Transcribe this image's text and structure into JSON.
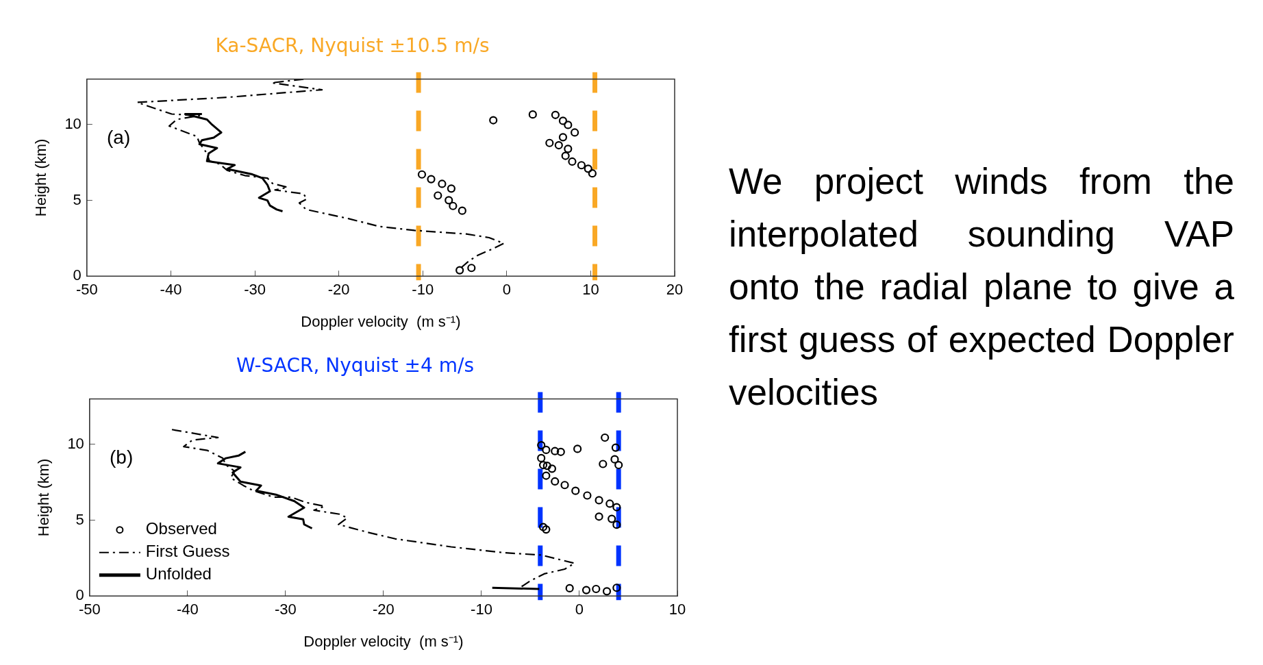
{
  "chart_data": [
    {
      "type": "line",
      "title": "Ka-SACR, Nyquist ±10.5 m/s",
      "xlabel": "Doppler velocity  (m s⁻¹)",
      "ylabel": "Height (km)",
      "xlim": [
        -50,
        20
      ],
      "xticks": [
        -50,
        -40,
        -30,
        -20,
        -10,
        0,
        10,
        20
      ],
      "ylim": [
        0,
        13
      ],
      "yticks": [
        0,
        5,
        10
      ],
      "grid": false,
      "legend": false,
      "annotations": [
        "(a)"
      ],
      "ref_lines": [
        {
          "axis": "x",
          "value": -10.5,
          "color": "#f9a825",
          "line_style": "dashed"
        },
        {
          "axis": "x",
          "value": 10.5,
          "color": "#f9a825",
          "line_style": "dashed"
        }
      ],
      "series": [
        {
          "type": "scatter",
          "marker": "circle",
          "color": "#000000",
          "x": [
            -1.6,
            3.1,
            5.8,
            6.7,
            7.3,
            8.1,
            6.7,
            5.1,
            6.2,
            7.3,
            7.0,
            7.8,
            8.9,
            9.7,
            10.2,
            -10.1,
            -9.0,
            -7.7,
            -6.6,
            -8.2,
            -6.9,
            -6.4,
            -5.3,
            -5.6,
            -4.2
          ],
          "values": [
            10.29,
            10.67,
            10.64,
            10.25,
            9.98,
            9.48,
            9.17,
            8.79,
            8.64,
            8.4,
            7.94,
            7.56,
            7.32,
            7.09,
            6.78,
            6.71,
            6.4,
            6.09,
            5.78,
            5.32,
            5.01,
            4.63,
            4.32,
            0.39,
            0.54
          ]
        },
        {
          "type": "line",
          "marker": "none",
          "line_style": "dashdot",
          "color": "#000000",
          "x": [
            -24.2,
            -28,
            -22,
            -27.3,
            -33.3,
            -44,
            -41.7,
            -39.9,
            -36.6,
            -39.3,
            -40.2,
            -36.9,
            -36.6,
            -35.7,
            -35.4,
            -34.2,
            -33.3,
            -31.2,
            -28.5,
            -27.9,
            -26.1,
            -27.6,
            -24.2,
            -23.8,
            -24.7,
            -23.9,
            -18.8,
            -15.2,
            -11.0,
            -4.8,
            -2.1,
            -0.35,
            -1.8,
            -3.4,
            -4.5,
            -5.3,
            -5.7
          ],
          "values": [
            13.0,
            12.76,
            12.3,
            12.07,
            11.8,
            11.47,
            11.03,
            10.7,
            10.6,
            10.34,
            9.91,
            9.22,
            8.8,
            8.1,
            7.6,
            7.41,
            6.98,
            6.64,
            6.47,
            6.12,
            5.86,
            5.69,
            5.43,
            5.09,
            4.83,
            4.4,
            3.79,
            3.28,
            3.02,
            2.78,
            2.54,
            2.16,
            1.77,
            1.39,
            1.0,
            0.62,
            0.39
          ]
        },
        {
          "type": "line",
          "marker": "none",
          "line_style": "solid",
          "color": "#000000",
          "x": [
            -36.3,
            -38.3,
            -35.7,
            -35.1,
            -34.0,
            -34.9,
            -36.3,
            -36.6,
            -34.5,
            -35.5,
            -35.7,
            -32.4,
            -33.3,
            -30.3,
            -29.1,
            -28.5,
            -28.2,
            -29.5,
            -28.5,
            -28.2,
            -27.4,
            -26.7
          ],
          "values": [
            10.7,
            10.7,
            10.34,
            10.0,
            9.48,
            9.14,
            8.97,
            8.71,
            8.45,
            8.1,
            7.59,
            7.33,
            7.07,
            6.72,
            6.47,
            6.03,
            5.6,
            5.17,
            5.0,
            4.66,
            4.4,
            4.28
          ]
        }
      ]
    },
    {
      "type": "line",
      "title": "W-SACR, Nyquist ±4 m/s",
      "xlabel": "Doppler velocity  (m s⁻¹)",
      "ylabel": "Height (km)",
      "xlim": [
        -50,
        10
      ],
      "xticks": [
        -50,
        -40,
        -30,
        -20,
        -10,
        0,
        10
      ],
      "ylim": [
        0,
        13
      ],
      "yticks": [
        0,
        5,
        10
      ],
      "grid": false,
      "legend": "bottom left",
      "annotations": [
        "(b)"
      ],
      "ref_lines": [
        {
          "axis": "x",
          "value": -4,
          "color": "#0033ff",
          "line_style": "dashed"
        },
        {
          "axis": "x",
          "value": 4,
          "color": "#0033ff",
          "line_style": "dashed"
        }
      ],
      "series": [
        {
          "name": "Observed",
          "type": "scatter",
          "marker": "circle",
          "color": "#000000",
          "x": [
            2.6,
            -0.2,
            3.7,
            -3.9,
            -3.4,
            -2.5,
            -1.9,
            -3.9,
            -3.7,
            -3.3,
            -2.8,
            -3.4,
            -2.5,
            -1.5,
            -0.4,
            0.8,
            2.0,
            3.1,
            3.8,
            2.0,
            3.3,
            3.8,
            -3.7,
            -3.4,
            2.4,
            3.6,
            4.0,
            -1.0,
            0.7,
            1.7,
            2.8,
            3.8
          ],
          "values": [
            10.45,
            9.71,
            9.79,
            9.95,
            9.64,
            9.56,
            9.51,
            9.1,
            8.64,
            8.59,
            8.4,
            7.94,
            7.56,
            7.32,
            6.94,
            6.63,
            6.32,
            6.09,
            5.86,
            5.24,
            5.09,
            4.7,
            4.55,
            4.39,
            8.71,
            9.02,
            8.64,
            0.51,
            0.39,
            0.46,
            0.31,
            0.54
          ]
        },
        {
          "name": "First Guess",
          "type": "line",
          "marker": "none",
          "line_style": "dashdot",
          "color": "#000000",
          "x": [
            -41.6,
            -36.9,
            -39.5,
            -40.4,
            -38.0,
            -36.4,
            -36.1,
            -35.2,
            -35.6,
            -34.3,
            -33.3,
            -31.2,
            -29.4,
            -27.9,
            -26.0,
            -27.1,
            -24.5,
            -23.7,
            -24.6,
            -21.6,
            -18.8,
            -16.1,
            -13.1,
            -7.6,
            -3.9,
            -0.5,
            -1.5,
            -3.6,
            -5.0,
            -5.9
          ],
          "values": [
            10.98,
            10.46,
            10.29,
            9.86,
            9.61,
            9.09,
            8.66,
            8.23,
            7.8,
            7.29,
            6.95,
            6.52,
            6.52,
            6.17,
            5.92,
            5.66,
            5.4,
            5.15,
            4.72,
            4.2,
            3.77,
            3.52,
            3.24,
            2.85,
            2.7,
            2.16,
            1.77,
            1.46,
            1.0,
            0.62
          ]
        },
        {
          "name": "Unfolded",
          "type": "line",
          "marker": "none",
          "line_style": "solid",
          "color": "#000000",
          "x": [
            -34.1,
            -34.8,
            -36.1,
            -36.9,
            -34.6,
            -35.4,
            -34.6,
            -32.5,
            -33.0,
            -31.0,
            -29.1,
            -28.1,
            -29.7,
            -28.2,
            -28.1,
            -27.3,
            null,
            -8.9,
            -4.1
          ],
          "values": [
            9.52,
            9.26,
            9.09,
            8.75,
            8.49,
            8.15,
            7.55,
            7.29,
            6.95,
            6.69,
            6.26,
            5.83,
            5.23,
            5.06,
            4.72,
            4.46,
            null,
            0.54,
            0.46
          ]
        }
      ]
    },
    {
      "type": "other",
      "annotations": [
        "We project winds from the interpolated sounding VAP onto the radial plane to give a first guess of expected Doppler velocities"
      ]
    }
  ]
}
